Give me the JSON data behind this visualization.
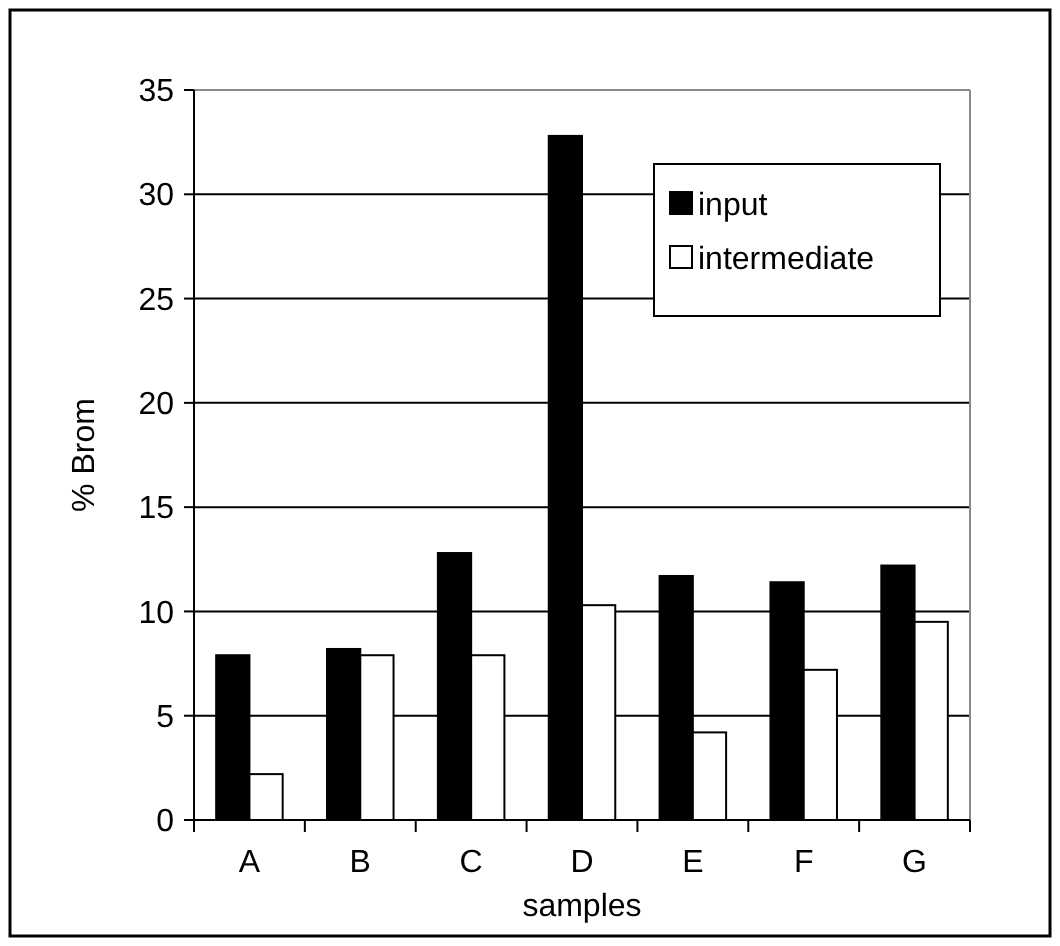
{
  "chart_data": {
    "type": "bar",
    "xlabel": "samples",
    "ylabel": "% Brom",
    "categories": [
      "A",
      "B",
      "C",
      "D",
      "E",
      "F",
      "G"
    ],
    "series": [
      {
        "name": "input",
        "color": "#000000",
        "values": [
          7.9,
          8.2,
          12.8,
          32.8,
          11.7,
          11.4,
          12.2
        ]
      },
      {
        "name": "intermediate",
        "color": "#ffffff",
        "values": [
          2.2,
          7.9,
          7.9,
          10.3,
          4.2,
          7.2,
          9.5
        ]
      }
    ],
    "ylim": [
      0,
      35
    ],
    "yticks": [
      0,
      5,
      10,
      15,
      20,
      25,
      30,
      35
    ],
    "grid": "y",
    "legend": "top right"
  }
}
